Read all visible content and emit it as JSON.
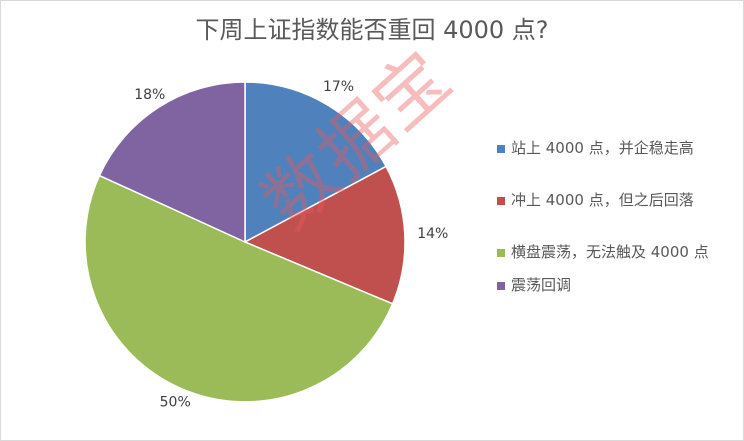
{
  "chart_data": {
    "type": "pie",
    "title": "下周上证指数能否重回 4000 点?",
    "legend_position": "right",
    "categories": [
      "站上 4000 点，并企稳走高",
      "冲上 4000 点，但之后回落",
      "横盘震荡，无法触及 4000 点",
      "震荡回调"
    ],
    "values": [
      17,
      14,
      50,
      18
    ],
    "value_labels": [
      "17%",
      "14%",
      "50%",
      "18%"
    ],
    "colors": [
      "#4f81bd",
      "#c0504d",
      "#9bbb59",
      "#8064a2"
    ]
  },
  "watermark": "数据宝",
  "watermark_color": "#eb5a5a"
}
